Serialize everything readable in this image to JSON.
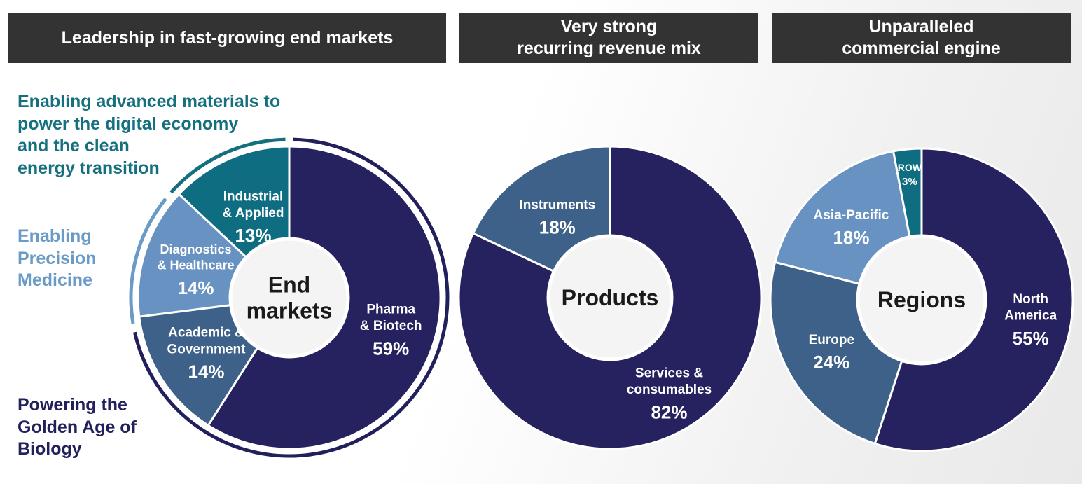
{
  "headers": {
    "end_markets": [
      "Leadership in fast-growing end markets"
    ],
    "revenue_mix": [
      "Very strong",
      "recurring revenue mix"
    ],
    "commercial": [
      "Unparalleled",
      "commercial engine"
    ]
  },
  "categories": {
    "advanced_materials": [
      "Enabling advanced materials to",
      "power the digital economy",
      "and the clean",
      "energy transition"
    ],
    "precision_medicine": [
      "Enabling",
      "Precision",
      "Medicine"
    ],
    "golden_age": [
      "Powering the",
      "Golden Age of",
      "Biology"
    ]
  },
  "colors": {
    "navy": "#26215f",
    "teal": "#0e6d80",
    "light_blue": "#6792c2",
    "steel_blue": "#3d6188",
    "header_bg": "#333333"
  },
  "chart_data": [
    {
      "type": "pie",
      "center_label": [
        "End",
        "markets"
      ],
      "slices": [
        {
          "label": [
            "Pharma",
            "& Biotech"
          ],
          "value": 59,
          "display": "59%",
          "color": "#26215f"
        },
        {
          "label": [
            "Academic &",
            "Government"
          ],
          "value": 14,
          "display": "14%",
          "color": "#3d6188"
        },
        {
          "label": [
            "Diagnostics",
            "& Healthcare"
          ],
          "value": 14,
          "display": "14%",
          "color": "#6792c2"
        },
        {
          "label": [
            "Industrial",
            "& Applied"
          ],
          "value": 13,
          "display": "13%",
          "color": "#0e6d80"
        }
      ]
    },
    {
      "type": "pie",
      "center_label": [
        "Products"
      ],
      "slices": [
        {
          "label": [
            "Services &",
            "consumables"
          ],
          "value": 82,
          "display": "82%",
          "color": "#26215f"
        },
        {
          "label": [
            "Instruments"
          ],
          "value": 18,
          "display": "18%",
          "color": "#3d6188"
        }
      ]
    },
    {
      "type": "pie",
      "center_label": [
        "Regions"
      ],
      "slices": [
        {
          "label": [
            "North",
            "America"
          ],
          "value": 55,
          "display": "55%",
          "color": "#26215f"
        },
        {
          "label": [
            "Europe"
          ],
          "value": 24,
          "display": "24%",
          "color": "#3d6188"
        },
        {
          "label": [
            "Asia-Pacific"
          ],
          "value": 18,
          "display": "18%",
          "color": "#6792c2"
        },
        {
          "label": [
            "ROW"
          ],
          "value": 3,
          "display": "3%",
          "color": "#0e6d80"
        }
      ]
    }
  ]
}
